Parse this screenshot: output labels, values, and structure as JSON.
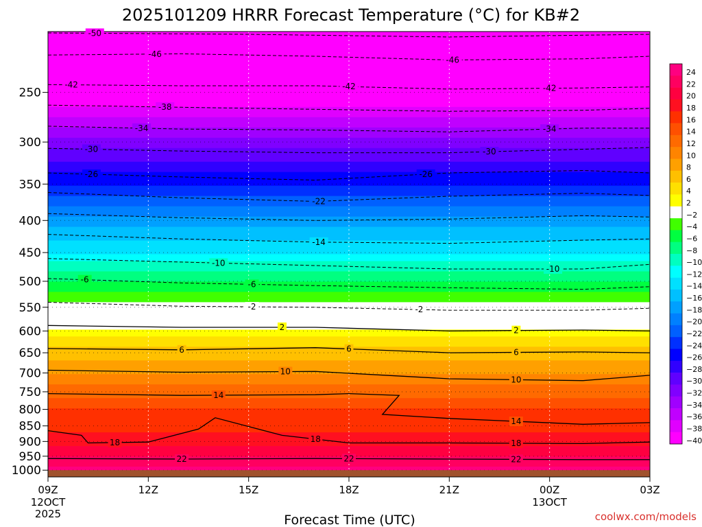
{
  "chart_data": {
    "type": "heatmap",
    "title": "2025101209 HRRR Forecast Temperature (°C) for KB#2",
    "xlabel": "Forecast Time (UTC)",
    "ylabel": "",
    "x_ticks": [
      {
        "value": 0,
        "label": "09Z",
        "sub": [
          "12OCT",
          "2025"
        ]
      },
      {
        "value": 3,
        "label": "12Z",
        "sub": []
      },
      {
        "value": 6,
        "label": "15Z",
        "sub": []
      },
      {
        "value": 9,
        "label": "18Z",
        "sub": []
      },
      {
        "value": 12,
        "label": "21Z",
        "sub": []
      },
      {
        "value": 15,
        "label": "00Z",
        "sub": [
          "13OCT"
        ]
      },
      {
        "value": 18,
        "label": "03Z",
        "sub": []
      }
    ],
    "xlim": [
      0,
      18
    ],
    "y_ticks": [
      250,
      300,
      350,
      400,
      450,
      500,
      550,
      600,
      650,
      700,
      750,
      800,
      850,
      900,
      950,
      1000
    ],
    "ylim": [
      1025,
      200
    ],
    "y_scale": "log",
    "surface_pressure_hpa": 1000,
    "colorbar": {
      "ticks": [
        24,
        22,
        20,
        18,
        16,
        14,
        12,
        10,
        8,
        6,
        4,
        2,
        -2,
        -4,
        -6,
        -8,
        -10,
        -12,
        -14,
        -16,
        -18,
        -20,
        -22,
        -24,
        -26,
        -28,
        -30,
        -32,
        -34,
        -36,
        -38,
        -40
      ],
      "colors": [
        "#ff0080",
        "#ff0060",
        "#ff0040",
        "#ff1020",
        "#ff3000",
        "#ff5000",
        "#ff6a00",
        "#ff8400",
        "#ffa000",
        "#ffc000",
        "#ffe000",
        "#ffff00",
        "#ffffff",
        "#40ff00",
        "#00ff40",
        "#00ff80",
        "#00ffc0",
        "#00ffff",
        "#00e0ff",
        "#00c0ff",
        "#00a0ff",
        "#0080ff",
        "#0060ff",
        "#0030ff",
        "#0000ff",
        "#3000ff",
        "#6000ff",
        "#8000ff",
        "#a000ff",
        "#c000ff",
        "#e000ff",
        "#ff00ff"
      ]
    },
    "profile_hpa": [
      200,
      250,
      300,
      350,
      400,
      450,
      500,
      550,
      600,
      650,
      700,
      750,
      800,
      850,
      900,
      950,
      1000
    ],
    "profile_temp_c": [
      -51,
      -42,
      -32,
      -25,
      -18,
      -13,
      -7,
      -2,
      2,
      6,
      9,
      12,
      15,
      16,
      18,
      21,
      24
    ],
    "contour_levels": [
      -50,
      -46,
      -42,
      -38,
      -34,
      -30,
      -26,
      -22,
      -18,
      -14,
      -10,
      -6,
      -2,
      2,
      6,
      10,
      14,
      18,
      22
    ],
    "contours": [
      {
        "level": -50,
        "label": "-50",
        "x": [
          0,
          6,
          12,
          18
        ],
        "p": [
          201,
          202,
          204,
          202
        ],
        "labels_at": [
          1.4
        ]
      },
      {
        "level": -46,
        "label": "-46",
        "x": [
          0,
          4,
          8,
          12,
          16,
          18
        ],
        "p": [
          218,
          217,
          219,
          222,
          221,
          219
        ],
        "labels_at": [
          3.2,
          12.1
        ]
      },
      {
        "level": -42,
        "label": "-42",
        "x": [
          0,
          4,
          8,
          12,
          16,
          18
        ],
        "p": [
          243,
          244,
          244,
          247,
          246,
          245
        ],
        "labels_at": [
          0.7,
          9.0,
          15.0
        ]
      },
      {
        "level": -38,
        "label": "-38",
        "x": [
          0,
          4,
          8,
          12,
          16,
          18
        ],
        "p": [
          262,
          264,
          266,
          268,
          267,
          265
        ],
        "labels_at": [
          3.5
        ]
      },
      {
        "level": -34,
        "label": "-34",
        "x": [
          0,
          4,
          8,
          12,
          16,
          18
        ],
        "p": [
          283,
          286,
          287,
          289,
          285,
          285
        ],
        "labels_at": [
          2.8,
          15.0
        ]
      },
      {
        "level": -30,
        "label": "-30",
        "x": [
          0,
          4,
          8,
          12,
          16,
          18
        ],
        "p": [
          307,
          310,
          312,
          312,
          308,
          306
        ],
        "labels_at": [
          1.3,
          13.2
        ]
      },
      {
        "level": -26,
        "label": "-26",
        "x": [
          0,
          4,
          8,
          12,
          16,
          18
        ],
        "p": [
          336,
          341,
          345,
          336,
          333,
          336
        ],
        "labels_at": [
          1.3,
          11.3
        ]
      },
      {
        "level": -22,
        "label": "-22",
        "x": [
          0,
          4,
          8,
          12,
          16,
          18
        ],
        "p": [
          361,
          368,
          373,
          366,
          362,
          365
        ],
        "labels_at": [
          8.1
        ]
      },
      {
        "level": -18,
        "label": "",
        "x": [
          0,
          4,
          8,
          12,
          16,
          18
        ],
        "p": [
          390,
          396,
          400,
          398,
          393,
          395
        ],
        "labels_at": []
      },
      {
        "level": -14,
        "label": "-14",
        "x": [
          0,
          4,
          8,
          12,
          16,
          18
        ],
        "p": [
          421,
          428,
          433,
          435,
          430,
          428
        ],
        "labels_at": [
          8.1
        ]
      },
      {
        "level": -10,
        "label": "-10",
        "x": [
          0,
          4,
          8,
          12,
          16,
          18
        ],
        "p": [
          460,
          466,
          472,
          478,
          478,
          470
        ],
        "labels_at": [
          5.1,
          15.1
        ]
      },
      {
        "level": -6,
        "label": "-6",
        "x": [
          0,
          4,
          8,
          12,
          16,
          18
        ],
        "p": [
          495,
          503,
          508,
          512,
          515,
          510
        ],
        "labels_at": [
          1.1,
          6.1
        ]
      },
      {
        "level": -2,
        "label": "-2",
        "x": [
          0,
          4,
          8,
          12,
          16,
          18
        ],
        "p": [
          540,
          548,
          550,
          556,
          556,
          552
        ],
        "labels_at": [
          6.1,
          11.1
        ]
      },
      {
        "level": 2,
        "label": "2",
        "x": [
          0,
          4,
          8,
          12,
          16,
          18
        ],
        "p": [
          588,
          592,
          592,
          600,
          598,
          600
        ],
        "labels_at": [
          7.0,
          14.0
        ]
      },
      {
        "level": 6,
        "label": "6",
        "x": [
          0,
          4,
          8,
          12,
          16,
          18
        ],
        "p": [
          640,
          643,
          638,
          650,
          648,
          650
        ],
        "labels_at": [
          4.0,
          9.0,
          14.0
        ]
      },
      {
        "level": 10,
        "label": "10",
        "x": [
          0,
          4,
          8,
          12,
          16,
          18
        ],
        "p": [
          693,
          698,
          696,
          715,
          720,
          706
        ],
        "labels_at": [
          7.1,
          14.0
        ]
      },
      {
        "level": 14,
        "label": "14",
        "x": [
          0,
          4,
          8,
          9,
          10.5,
          10.0,
          12,
          16,
          18
        ],
        "p": [
          755,
          760,
          758,
          755,
          760,
          815,
          827,
          845,
          840
        ],
        "labels_at": [
          5.1,
          14.0
        ]
      },
      {
        "level": 18,
        "label": "18",
        "x": [
          0,
          1.0,
          1.2,
          3.0,
          4.5,
          5.0,
          7.0,
          9.0,
          12,
          16,
          18
        ],
        "p": [
          865,
          880,
          905,
          902,
          860,
          825,
          880,
          905,
          905,
          907,
          902
        ],
        "labels_at": [
          2.0,
          8.0,
          14.0
        ]
      },
      {
        "level": 22,
        "label": "22",
        "x": [
          0,
          4,
          8,
          12,
          16,
          18
        ],
        "p": [
          958,
          960,
          958,
          960,
          962,
          962
        ],
        "labels_at": [
          4.0,
          9.0,
          14.0
        ]
      }
    ],
    "grid": true,
    "legend": "colorbar-right"
  },
  "page": {
    "credit": "coolwx.com/models"
  }
}
